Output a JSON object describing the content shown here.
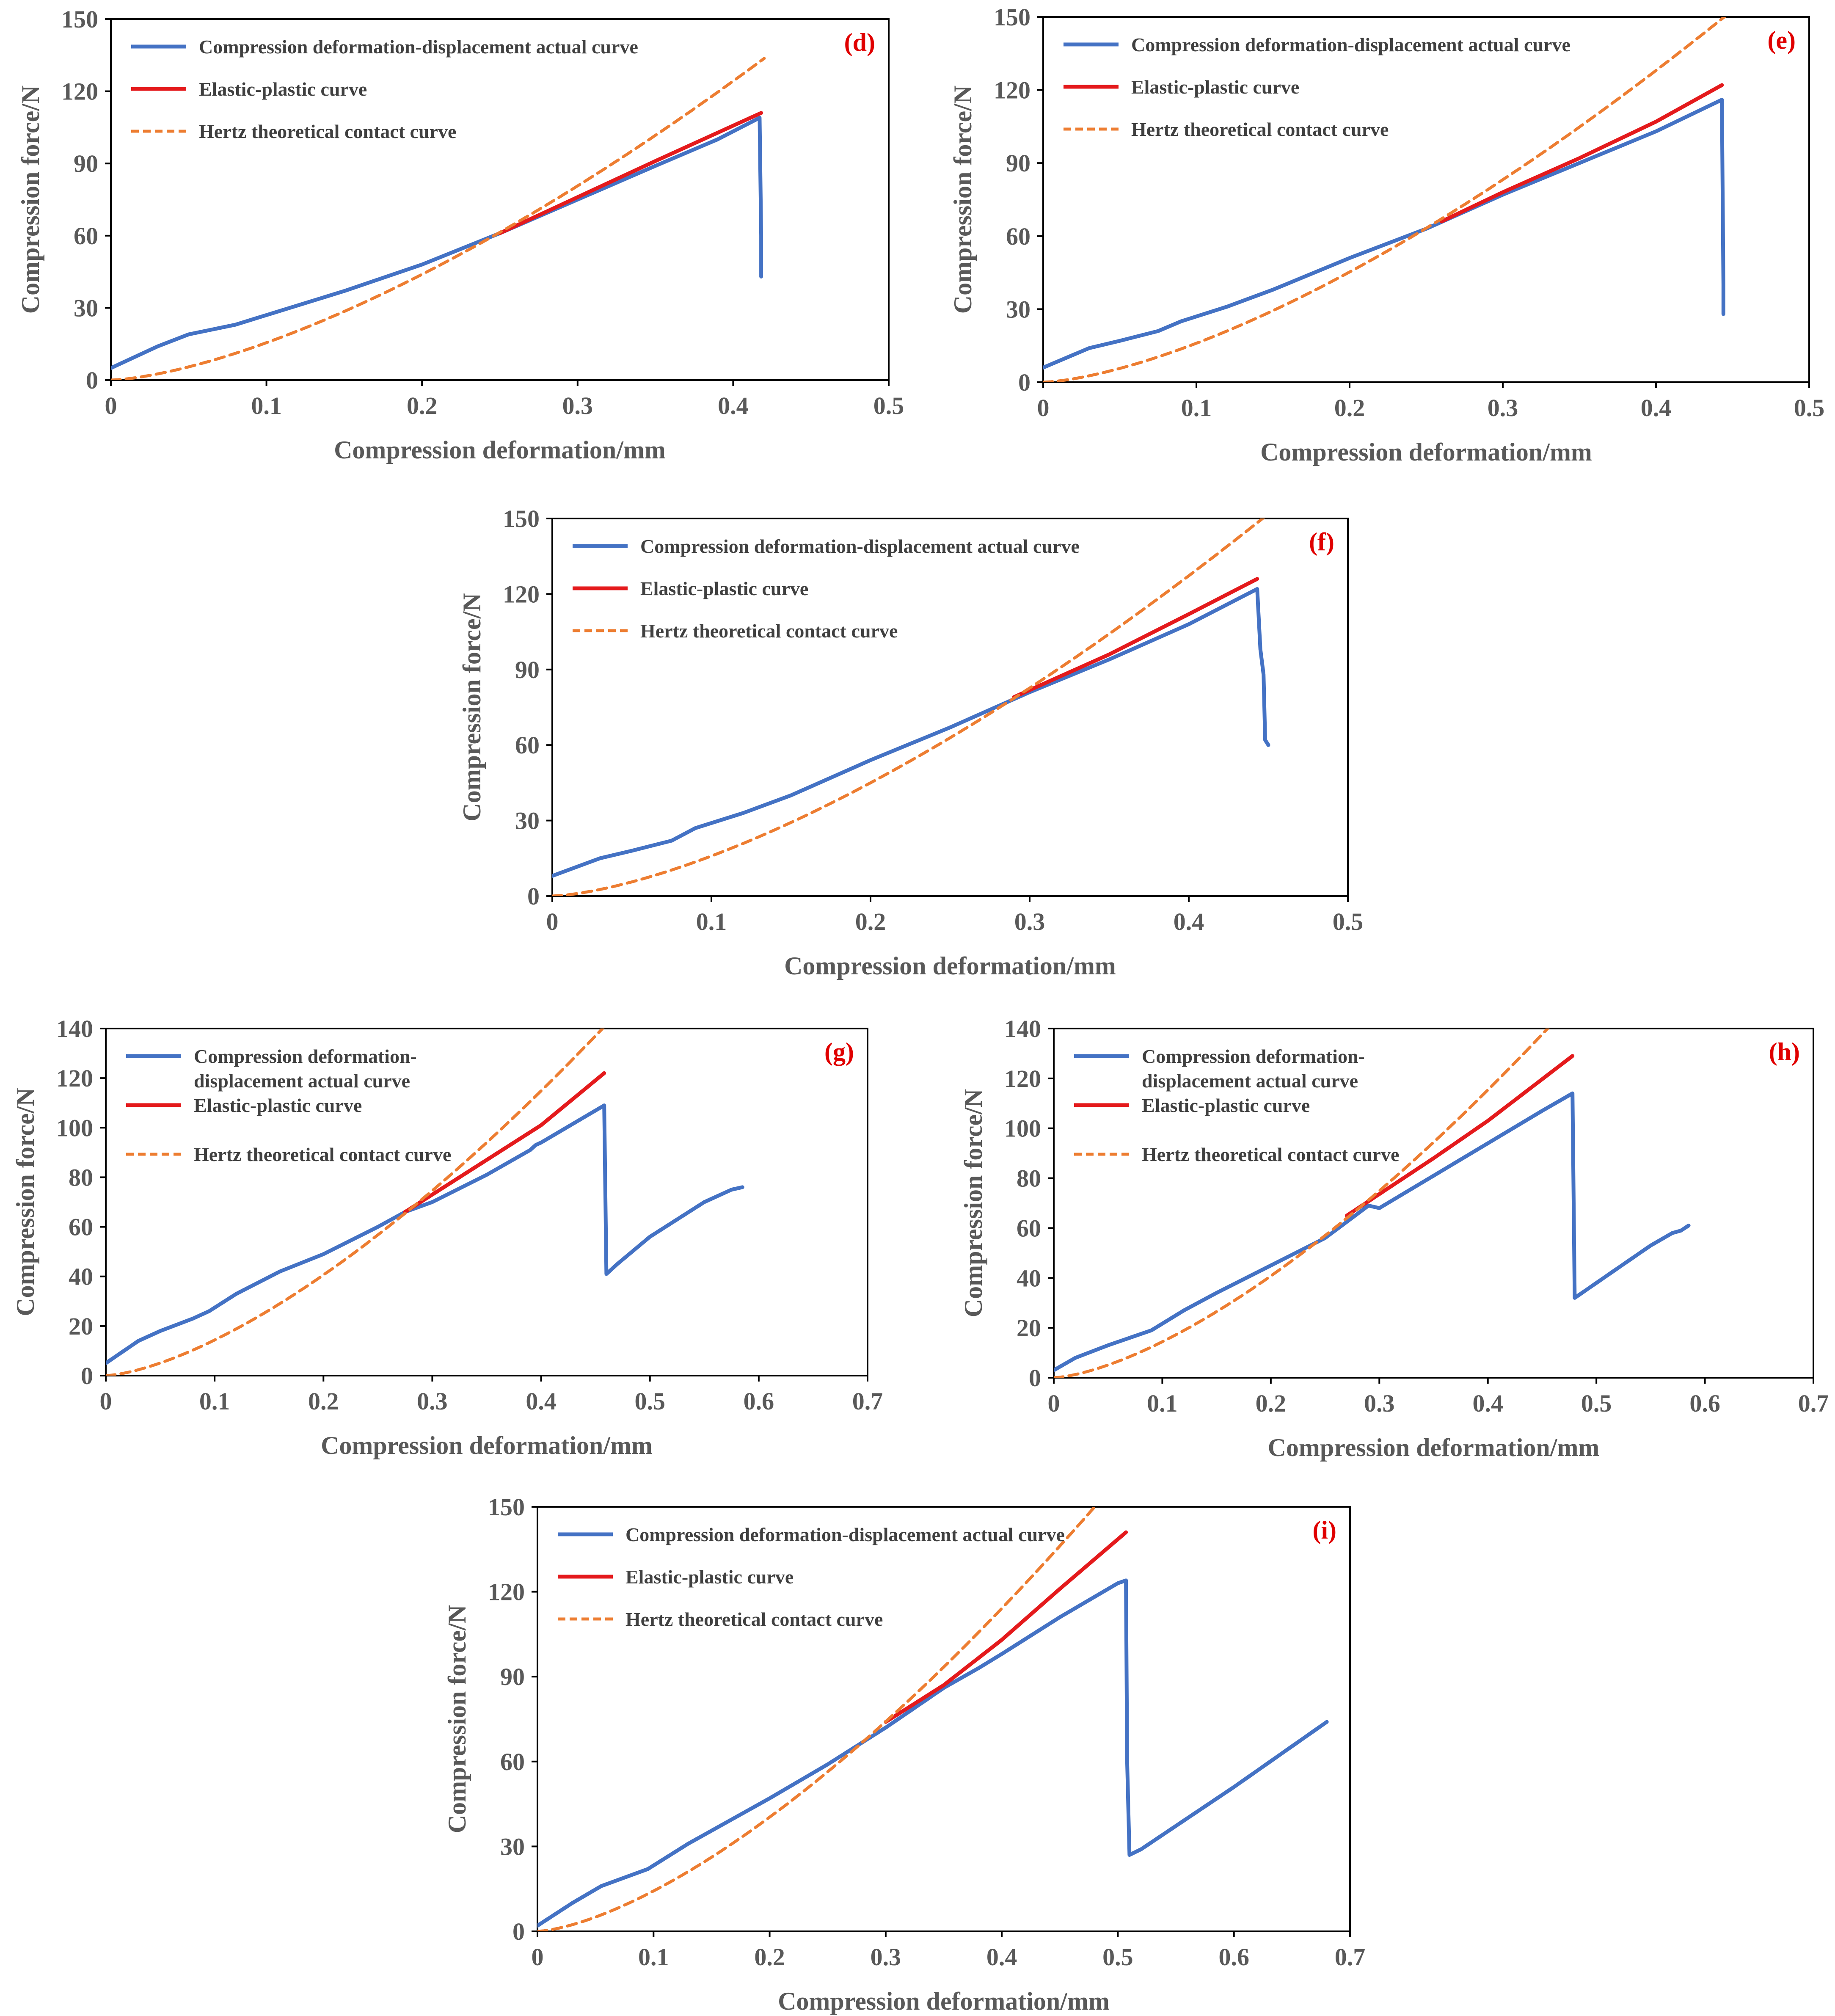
{
  "colors": {
    "actual": "#4472C4",
    "elastic": "#E41A1C",
    "hertz": "#ED7D31",
    "axis": "#000000",
    "tick_text": "#595959",
    "panel_label": "#E00000"
  },
  "chart_data": [
    {
      "id": "d",
      "type": "line",
      "panel_label": "(d)",
      "xlabel": "Compression deformation/mm",
      "ylabel": "Compression force/N",
      "xlim": [
        0,
        0.5
      ],
      "ylim": [
        0,
        150
      ],
      "xticks": [
        0,
        0.1,
        0.2,
        0.3,
        0.4,
        0.5
      ],
      "xtick_labels": [
        "0",
        "0.1",
        "0.2",
        "0.3",
        "0.4",
        "0.5"
      ],
      "yticks": [
        0,
        30,
        60,
        90,
        120,
        150
      ],
      "ytick_labels": [
        "0",
        "30",
        "60",
        "90",
        "120",
        "150"
      ],
      "series": [
        {
          "name": "Compression deformation-displacement actual curve",
          "legend_lines": [
            "Compression deformation-displacement actual curve"
          ],
          "style": "actual",
          "x": [
            0,
            0.03,
            0.05,
            0.08,
            0.095,
            0.12,
            0.15,
            0.2,
            0.25,
            0.3,
            0.35,
            0.39,
            0.417,
            0.418,
            0.418
          ],
          "y": [
            5,
            14,
            19,
            23,
            26,
            31,
            37,
            48,
            61,
            75,
            89,
            100,
            109,
            60,
            43
          ]
        },
        {
          "name": "Elastic-plastic curve",
          "legend_lines": [
            "Elastic-plastic curve"
          ],
          "style": "elastic",
          "x": [
            0.25,
            0.3,
            0.35,
            0.418
          ],
          "y": [
            61,
            76,
            91,
            111
          ]
        },
        {
          "name": "Hertz theoretical contact curve",
          "legend_lines": [
            "Hertz theoretical contact curve"
          ],
          "style": "hertz",
          "fn": {
            "k": 491,
            "p": 1.5
          },
          "x_end": 0.42
        }
      ]
    },
    {
      "id": "e",
      "type": "line",
      "panel_label": "(e)",
      "xlabel": "Compression deformation/mm",
      "ylabel": "Compression force/N",
      "xlim": [
        0,
        0.5
      ],
      "ylim": [
        0,
        150
      ],
      "xticks": [
        0,
        0.1,
        0.2,
        0.3,
        0.4,
        0.5
      ],
      "xtick_labels": [
        "0",
        "0.1",
        "0.2",
        "0.3",
        "0.4",
        "0.5"
      ],
      "yticks": [
        0,
        30,
        60,
        90,
        120,
        150
      ],
      "ytick_labels": [
        "0",
        "30",
        "60",
        "90",
        "120",
        "150"
      ],
      "series": [
        {
          "name": "Compression deformation-displacement actual curve",
          "legend_lines": [
            "Compression deformation-displacement actual curve"
          ],
          "style": "actual",
          "x": [
            0,
            0.03,
            0.05,
            0.075,
            0.09,
            0.12,
            0.15,
            0.2,
            0.25,
            0.3,
            0.35,
            0.4,
            0.443,
            0.444,
            0.444
          ],
          "y": [
            6,
            14,
            17,
            21,
            25,
            31,
            38,
            51,
            63,
            77,
            90,
            103,
            116,
            40,
            28
          ]
        },
        {
          "name": "Elastic-plastic curve",
          "legend_lines": [
            "Elastic-plastic curve"
          ],
          "style": "elastic",
          "x": [
            0.26,
            0.3,
            0.35,
            0.4,
            0.443
          ],
          "y": [
            66,
            78,
            92,
            107,
            122
          ]
        },
        {
          "name": "Hertz theoretical contact curve",
          "legend_lines": [
            "Hertz theoretical contact curve"
          ],
          "style": "hertz",
          "fn": {
            "k": 506,
            "p": 1.5
          },
          "x_end": 0.45
        }
      ]
    },
    {
      "id": "f",
      "type": "line",
      "panel_label": "(f)",
      "xlabel": "Compression deformation/mm",
      "ylabel": "Compression force/N",
      "xlim": [
        0,
        0.5
      ],
      "ylim": [
        0,
        150
      ],
      "xticks": [
        0,
        0.1,
        0.2,
        0.3,
        0.4,
        0.5
      ],
      "xtick_labels": [
        "0",
        "0.1",
        "0.2",
        "0.3",
        "0.4",
        "0.5"
      ],
      "yticks": [
        0,
        30,
        60,
        90,
        120,
        150
      ],
      "ytick_labels": [
        "0",
        "30",
        "60",
        "90",
        "120",
        "150"
      ],
      "series": [
        {
          "name": "Compression deformation-displacement actual curve",
          "legend_lines": [
            "Compression deformation-displacement actual curve"
          ],
          "style": "actual",
          "x": [
            0,
            0.03,
            0.05,
            0.075,
            0.09,
            0.12,
            0.15,
            0.2,
            0.25,
            0.3,
            0.35,
            0.4,
            0.443,
            0.445,
            0.447,
            0.448,
            0.45
          ],
          "y": [
            8,
            15,
            18,
            22,
            27,
            33,
            40,
            54,
            67,
            81,
            94,
            108,
            122,
            98,
            88,
            62,
            60
          ]
        },
        {
          "name": "Elastic-plastic curve",
          "legend_lines": [
            "Elastic-plastic curve"
          ],
          "style": "elastic",
          "x": [
            0.29,
            0.35,
            0.4,
            0.443
          ],
          "y": [
            79,
            96,
            112,
            126
          ]
        },
        {
          "name": "Hertz theoretical contact curve",
          "legend_lines": [
            "Hertz theoretical contact curve"
          ],
          "style": "hertz",
          "fn": {
            "k": 503,
            "p": 1.5
          },
          "x_end": 0.45
        }
      ]
    },
    {
      "id": "g",
      "type": "line",
      "panel_label": "(g)",
      "xlabel": "Compression deformation/mm",
      "ylabel": "Compression force/N",
      "xlim": [
        0,
        0.7
      ],
      "ylim": [
        0,
        140
      ],
      "xticks": [
        0,
        0.1,
        0.2,
        0.3,
        0.4,
        0.5,
        0.6,
        0.7
      ],
      "xtick_labels": [
        "0",
        "0.1",
        "0.2",
        "0.3",
        "0.4",
        "0.5",
        "0.6",
        "0.7"
      ],
      "yticks": [
        0,
        20,
        40,
        60,
        80,
        100,
        120,
        140
      ],
      "ytick_labels": [
        "0",
        "20",
        "40",
        "60",
        "80",
        "100",
        "120",
        "140"
      ],
      "series": [
        {
          "name": "Compression deformation-displacement actual curve",
          "legend_lines": [
            "Compression deformation-",
            "displacement actual curve"
          ],
          "style": "actual",
          "x": [
            0,
            0.03,
            0.05,
            0.08,
            0.095,
            0.12,
            0.16,
            0.2,
            0.25,
            0.275,
            0.3,
            0.35,
            0.39,
            0.395,
            0.4,
            0.458,
            0.46,
            0.47,
            0.5,
            0.55,
            0.575,
            0.585
          ],
          "y": [
            5,
            14,
            18,
            23,
            26,
            33,
            42,
            49,
            60,
            66,
            70,
            81,
            91,
            93,
            94,
            109,
            41,
            45,
            56,
            70,
            75,
            76
          ]
        },
        {
          "name": "Elastic-plastic curve",
          "legend_lines": [
            "Elastic-plastic curve"
          ],
          "style": "elastic",
          "x": [
            0.275,
            0.35,
            0.4,
            0.458
          ],
          "y": [
            66,
            87,
            101,
            122
          ]
        },
        {
          "name": "Hertz theoretical contact curve",
          "legend_lines": [
            "Hertz theoretical contact curve"
          ],
          "style": "hertz",
          "fn": {
            "k": 454,
            "p": 1.5
          },
          "x_end": 0.468
        }
      ]
    },
    {
      "id": "h",
      "type": "line",
      "panel_label": "(h)",
      "xlabel": "Compression deformation/mm",
      "ylabel": "Compression force/N",
      "xlim": [
        0,
        0.7
      ],
      "ylim": [
        0,
        140
      ],
      "xticks": [
        0,
        0.1,
        0.2,
        0.3,
        0.4,
        0.5,
        0.6,
        0.7
      ],
      "xtick_labels": [
        "0",
        "0.1",
        "0.2",
        "0.3",
        "0.4",
        "0.5",
        "0.6",
        "0.7"
      ],
      "yticks": [
        0,
        20,
        40,
        60,
        80,
        100,
        120,
        140
      ],
      "ytick_labels": [
        "0",
        "20",
        "40",
        "60",
        "80",
        "100",
        "120",
        "140"
      ],
      "series": [
        {
          "name": "Compression deformation-displacement actual curve",
          "legend_lines": [
            "Compression deformation-",
            "displacement actual curve"
          ],
          "style": "actual",
          "x": [
            0,
            0.02,
            0.05,
            0.09,
            0.12,
            0.15,
            0.2,
            0.25,
            0.29,
            0.3,
            0.35,
            0.4,
            0.45,
            0.478,
            0.48,
            0.49,
            0.52,
            0.55,
            0.57,
            0.578,
            0.585
          ],
          "y": [
            3,
            8,
            13,
            19,
            27,
            34,
            45,
            56,
            69,
            68,
            81,
            94,
            107,
            114,
            32,
            35,
            44,
            53,
            58,
            59,
            61
          ]
        },
        {
          "name": "Elastic-plastic curve",
          "legend_lines": [
            "Elastic-plastic curve"
          ],
          "style": "elastic",
          "x": [
            0.27,
            0.35,
            0.4,
            0.478
          ],
          "y": [
            65,
            88,
            103,
            129
          ]
        },
        {
          "name": "Hertz theoretical contact curve",
          "legend_lines": [
            "Hertz theoretical contact curve"
          ],
          "style": "hertz",
          "fn": {
            "k": 456,
            "p": 1.5
          },
          "x_end": 0.47
        }
      ]
    },
    {
      "id": "i",
      "type": "line",
      "panel_label": "(i)",
      "xlabel": "Compression deformation/mm",
      "ylabel": "Compression force/N",
      "xlim": [
        0,
        0.7
      ],
      "ylim": [
        0,
        150
      ],
      "xticks": [
        0,
        0.1,
        0.2,
        0.3,
        0.4,
        0.5,
        0.6,
        0.7
      ],
      "xtick_labels": [
        "0",
        "0.1",
        "0.2",
        "0.3",
        "0.4",
        "0.5",
        "0.6",
        "0.7"
      ],
      "yticks": [
        0,
        30,
        60,
        90,
        120,
        150
      ],
      "ytick_labels": [
        "0",
        "30",
        "60",
        "90",
        "120",
        "150"
      ],
      "series": [
        {
          "name": "Compression deformation-displacement actual curve",
          "legend_lines": [
            "Compression deformation-displacement actual curve"
          ],
          "style": "actual",
          "x": [
            0,
            0.03,
            0.055,
            0.095,
            0.13,
            0.2,
            0.25,
            0.3,
            0.35,
            0.38,
            0.4,
            0.45,
            0.5,
            0.507,
            0.508,
            0.51,
            0.52,
            0.6,
            0.68
          ],
          "y": [
            2,
            10,
            16,
            22,
            31,
            47,
            59,
            72,
            86,
            93,
            98,
            111,
            123,
            124,
            60,
            27,
            29,
            51,
            74
          ]
        },
        {
          "name": "Elastic-plastic curve",
          "legend_lines": [
            "Elastic-plastic curve"
          ],
          "style": "elastic",
          "x": [
            0.3,
            0.35,
            0.4,
            0.45,
            0.507
          ],
          "y": [
            74,
            87,
            103,
            121,
            141
          ]
        },
        {
          "name": "Hertz theoretical contact curve",
          "legend_lines": [
            "Hertz theoretical contact curve"
          ],
          "style": "hertz",
          "fn": {
            "k": 451,
            "p": 1.5
          },
          "x_end": 0.51
        }
      ]
    }
  ]
}
